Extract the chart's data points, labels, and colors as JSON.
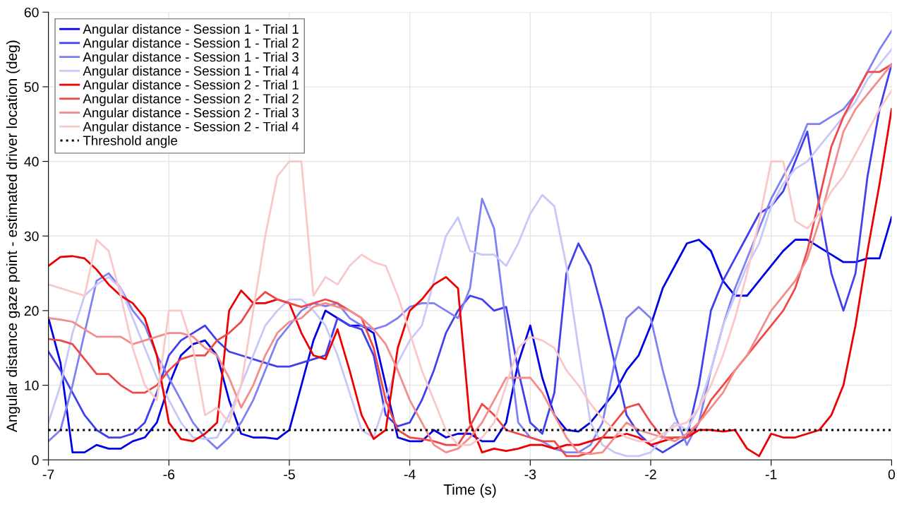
{
  "chart_data": {
    "type": "line",
    "xlabel": "Time (s)",
    "ylabel": "Angular distance gaze point - estimated driver location (deg)",
    "x": [
      -7.0,
      -6.9,
      -6.8,
      -6.7,
      -6.6,
      -6.5,
      -6.4,
      -6.3,
      -6.2,
      -6.1,
      -6.0,
      -5.9,
      -5.8,
      -5.7,
      -5.6,
      -5.5,
      -5.4,
      -5.3,
      -5.2,
      -5.1,
      -5.0,
      -4.9,
      -4.8,
      -4.7,
      -4.6,
      -4.5,
      -4.4,
      -4.3,
      -4.2,
      -4.1,
      -4.0,
      -3.9,
      -3.8,
      -3.7,
      -3.6,
      -3.5,
      -3.4,
      -3.3,
      -3.2,
      -3.1,
      -3.0,
      -2.9,
      -2.8,
      -2.7,
      -2.6,
      -2.5,
      -2.4,
      -2.3,
      -2.2,
      -2.1,
      -2.0,
      -1.9,
      -1.8,
      -1.7,
      -1.6,
      -1.5,
      -1.4,
      -1.3,
      -1.2,
      -1.1,
      -1.0,
      -0.9,
      -0.8,
      -0.7,
      -0.6,
      -0.5,
      -0.4,
      -0.3,
      -0.2,
      -0.1,
      0.0
    ],
    "xlim": [
      -7,
      0
    ],
    "xticks": [
      -7,
      -6,
      -5,
      -4,
      -3,
      -2,
      -1,
      0
    ],
    "ylim": [
      0,
      60
    ],
    "yticks": [
      0,
      10,
      20,
      30,
      40,
      50,
      60
    ],
    "grid": true,
    "legend": "top left",
    "line_style": "solid",
    "marker": "none",
    "series": [
      {
        "name": "Angular distance - Session 1 - Trial 1",
        "color": "#0000e6",
        "values": [
          19,
          13,
          1,
          1,
          2,
          1.5,
          1.5,
          2.5,
          3,
          5,
          10,
          14,
          15.5,
          16,
          14,
          8,
          3.5,
          3,
          3,
          2.8,
          4,
          10,
          16,
          20,
          19,
          18,
          18,
          17,
          10,
          3,
          2.5,
          2.5,
          4,
          3,
          3.5,
          3.5,
          2.5,
          2.5,
          5,
          13,
          18,
          11,
          6,
          4,
          3.8,
          5,
          7,
          9,
          12,
          14,
          18,
          23,
          26,
          29,
          29.5,
          28,
          24,
          22,
          22,
          24,
          26,
          28,
          29.5,
          29.5,
          28.5,
          27.5,
          26.5,
          26.5,
          27,
          27,
          32.5
        ]
      },
      {
        "name": "Angular distance - Session 1 - Trial 2",
        "color": "#4040f0",
        "values": [
          14.5,
          12,
          9,
          6,
          4,
          3,
          3,
          3.5,
          5,
          9,
          14,
          16,
          17,
          18,
          16,
          14.5,
          14,
          13.5,
          13,
          12.5,
          12.5,
          13,
          13.5,
          14,
          19,
          18,
          17.5,
          14,
          6,
          4.5,
          5,
          8,
          12,
          17,
          20,
          22,
          21.5,
          20,
          20.5,
          12,
          5,
          3.5,
          9,
          25,
          29,
          26,
          20,
          13,
          6,
          3.5,
          2,
          1,
          2,
          3,
          10,
          20,
          24,
          27,
          30,
          33,
          34,
          36,
          40,
          44,
          34,
          25,
          20,
          25,
          38,
          47,
          53
        ]
      },
      {
        "name": "Angular distance - Session 1 - Trial 3",
        "color": "#8080f5",
        "values": [
          2.5,
          4,
          10,
          17,
          24,
          25,
          23,
          20,
          18,
          14,
          11,
          8,
          5,
          3,
          1.5,
          3,
          5,
          8,
          12,
          16,
          18,
          20,
          21,
          20.6,
          21,
          19,
          18,
          17.5,
          18,
          19,
          20.5,
          21,
          21,
          20,
          19,
          23,
          35,
          31,
          18,
          5,
          3,
          2.5,
          1.5,
          1,
          1,
          2,
          5,
          13,
          19,
          20.5,
          19,
          12,
          6,
          2,
          5,
          12,
          18,
          23,
          27,
          31,
          35,
          38,
          41,
          45,
          45,
          46,
          47,
          49,
          52,
          55,
          57.5
        ]
      },
      {
        "name": "Angular distance - Session 1 - Trial 4",
        "color": "#c8c8f8",
        "values": [
          5,
          10,
          17,
          22,
          23.5,
          24.5,
          23,
          19,
          15,
          11,
          8,
          5,
          3,
          2.8,
          3,
          6,
          10,
          14,
          18,
          20,
          21.5,
          21.5,
          20,
          18,
          14,
          9,
          4,
          3,
          8,
          13,
          16,
          18,
          24,
          30,
          32.5,
          28,
          27.5,
          27.5,
          26,
          29,
          33,
          35.5,
          34,
          26,
          15,
          5,
          2,
          1,
          0.5,
          0.5,
          1,
          3,
          5,
          4,
          7,
          12,
          18,
          22,
          26,
          29,
          34,
          37,
          39,
          40,
          42,
          44,
          46,
          48,
          51,
          53,
          55
        ]
      },
      {
        "name": "Angular distance - Session 2 - Trial 1",
        "color": "#ee0000",
        "values": [
          26,
          27.2,
          27.3,
          27,
          25.5,
          23.5,
          22,
          21,
          19,
          14,
          5,
          2.8,
          2.5,
          3.5,
          5,
          20,
          22.7,
          21,
          21,
          21.5,
          21,
          17,
          14,
          13.5,
          17.5,
          12,
          6,
          2.8,
          4,
          15,
          20,
          21.5,
          23.5,
          24.5,
          23,
          5,
          1,
          1.5,
          1.2,
          1.5,
          2,
          2,
          1.5,
          2,
          2,
          2.5,
          3,
          3,
          3.5,
          3,
          2,
          2.5,
          3,
          3,
          4,
          4,
          3.8,
          4,
          1.5,
          0.5,
          3.5,
          3,
          3,
          3.5,
          4,
          6,
          10,
          18,
          28,
          37,
          47
        ]
      },
      {
        "name": "Angular distance - Session 2 - Trial 2",
        "color": "#f04848",
        "values": [
          16.2,
          16,
          15.5,
          13.5,
          11.5,
          11.5,
          10,
          9,
          9,
          10,
          12,
          13.5,
          14,
          14,
          16,
          17,
          18.5,
          21,
          22.5,
          21.5,
          21,
          20.5,
          21,
          21.5,
          21,
          20,
          19,
          15,
          8,
          4,
          3,
          2.8,
          2.5,
          2,
          2,
          4.5,
          7.5,
          6,
          4,
          3.5,
          3,
          2.5,
          2.5,
          0.5,
          0.5,
          1,
          3,
          5,
          7,
          7.5,
          5,
          3,
          3,
          3,
          5,
          8,
          10,
          12,
          14,
          16,
          18,
          20,
          23,
          28,
          35,
          42,
          46,
          49,
          52,
          52,
          53
        ]
      },
      {
        "name": "Angular distance - Session 2 - Trial 3",
        "color": "#f58c8c",
        "values": [
          19,
          18.8,
          18.5,
          17.5,
          16.5,
          16.5,
          16.5,
          15.5,
          16,
          16.5,
          17,
          17,
          16.5,
          15,
          14,
          11,
          7,
          10,
          14,
          17,
          18.5,
          19,
          20.5,
          21,
          20.5,
          20,
          19,
          17.5,
          15.5,
          12,
          8,
          5,
          2,
          1,
          1.5,
          3,
          5,
          8,
          11,
          11,
          11,
          9,
          6,
          3,
          1,
          0.8,
          1,
          3,
          5,
          4,
          3.5,
          3,
          2.5,
          3.5,
          5,
          7,
          9,
          12,
          14,
          17,
          20,
          22,
          24,
          27,
          32,
          38,
          44,
          47,
          49,
          51,
          53
        ]
      },
      {
        "name": "Angular distance - Session 2 - Trial 4",
        "color": "#fac8c8",
        "values": [
          23.5,
          23,
          22.5,
          22,
          29.5,
          28,
          22,
          15,
          10,
          8,
          20,
          20,
          15,
          6,
          7,
          5,
          10,
          20,
          30,
          38,
          40,
          40,
          22,
          24.5,
          23.5,
          26,
          27.5,
          26.5,
          26,
          22,
          17,
          12,
          8,
          4,
          2,
          2,
          3,
          5,
          10,
          15,
          16.5,
          16,
          15,
          12,
          10,
          7.5,
          5.5,
          4,
          3,
          2.5,
          2.5,
          3.5,
          4.5,
          5,
          7,
          10,
          14,
          19,
          25,
          32,
          40,
          40,
          32,
          31,
          33,
          36,
          38,
          41,
          44,
          47,
          49.5
        ]
      }
    ],
    "ref_lines": [
      {
        "axis": "y",
        "value": 4,
        "label": "Threshold angle",
        "color": "#000000",
        "line_style": "dotted"
      }
    ]
  }
}
